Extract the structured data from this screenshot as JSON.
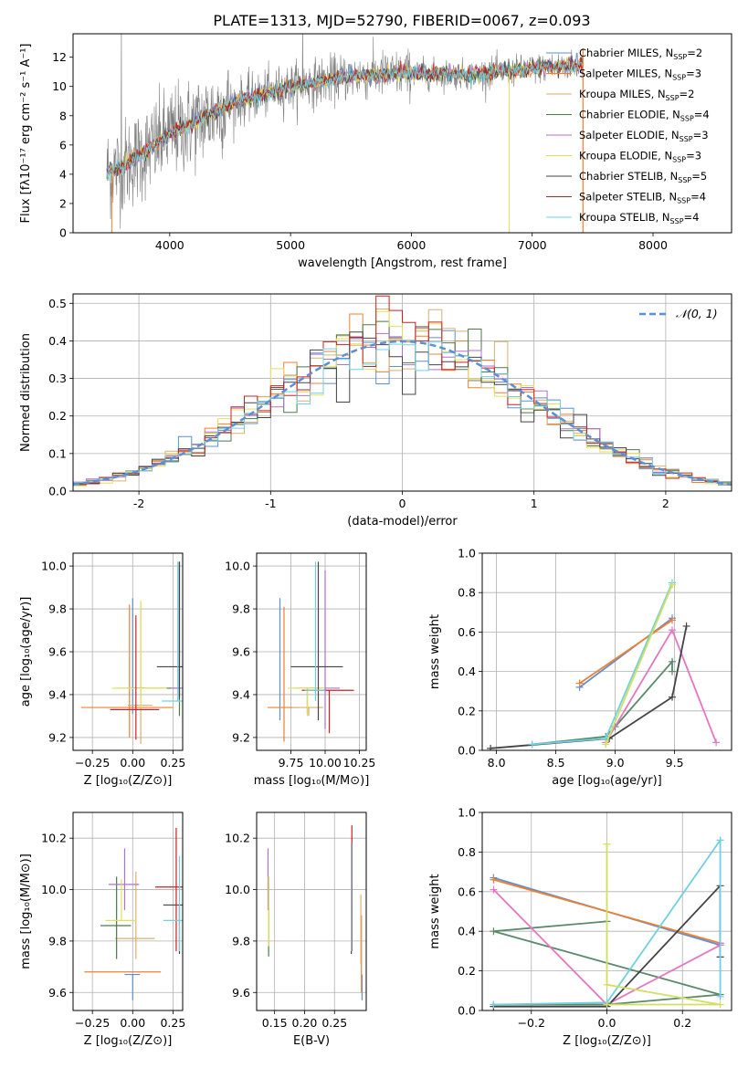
{
  "figure_title": "PLATE=1313, MJD=52790, FIBERID=0067, z=0.093",
  "colors": {
    "Chabrier MILES": "#5b8fd6",
    "Salpeter MILES": "#f07f30",
    "Kroupa MILES": "#d8b070",
    "Chabrier ELODIE": "#4a7a4a",
    "Salpeter ELODIE": "#b070d0",
    "Kroupa ELODIE": "#e6e055",
    "Chabrier STELIB": "#444444",
    "Salpeter STELIB": "#cc2020",
    "Kroupa STELIB": "#70d0e0",
    "data": "#808080",
    "weight_lines": [
      "#5b8fd6",
      "#f07f30",
      "#5a8a6a",
      "#e377c2",
      "#444444",
      "#70d0e0",
      "#d0e060"
    ]
  },
  "chart_data": [
    {
      "id": "spectrum",
      "type": "line",
      "title": "PLATE=1313, MJD=52790, FIBERID=0067, z=0.093",
      "xlabel": "wavelength [Angstrom, rest frame]",
      "ylabel": "Flux [fλ10⁻¹⁷ erg cm⁻² s⁻¹ A⁻¹]",
      "xlim": [
        3200,
        8650
      ],
      "ylim": [
        0,
        13.6
      ],
      "xticks": [
        4000,
        5000,
        6000,
        7000,
        8000
      ],
      "yticks": [
        0,
        2,
        4,
        6,
        8,
        10,
        12
      ],
      "legend_position": "upper-right",
      "legend": [
        {
          "name": "Chabrier MILES",
          "suffix": "=2"
        },
        {
          "name": "Salpeter MILES",
          "suffix": "=3"
        },
        {
          "name": "Kroupa MILES",
          "suffix": "=2"
        },
        {
          "name": "Chabrier ELODIE",
          "suffix": "=4"
        },
        {
          "name": "Salpeter ELODIE",
          "suffix": "=3"
        },
        {
          "name": "Kroupa ELODIE",
          "suffix": "=3"
        },
        {
          "name": "Chabrier STELIB",
          "suffix": "=5"
        },
        {
          "name": "Salpeter STELIB",
          "suffix": "=4"
        },
        {
          "name": "Kroupa STELIB",
          "suffix": "=4"
        }
      ],
      "continuum": {
        "x": [
          3500,
          3600,
          3800,
          4000,
          4200,
          4500,
          5000,
          5500,
          6000,
          6500,
          7000,
          7400
        ],
        "y": [
          4.2,
          4.5,
          5.5,
          6.8,
          7.5,
          8.8,
          10.0,
          10.7,
          10.9,
          10.8,
          11.2,
          11.5
        ]
      },
      "grid": false
    },
    {
      "id": "residuals",
      "type": "line",
      "xlabel": "(data-model)/error",
      "ylabel": "Normed distribution",
      "xlim": [
        -2.5,
        2.5
      ],
      "ylim": [
        0,
        0.525
      ],
      "xticks": [
        -2,
        -1,
        0,
        1,
        2
      ],
      "yticks": [
        0.0,
        0.1,
        0.2,
        0.3,
        0.4,
        0.5
      ],
      "legend_position": "upper-right",
      "normal_label": "𝒩(0, 1)",
      "bin_width": 0.1,
      "bin_start": -2.5,
      "grid": true
    },
    {
      "id": "age_vs_Z",
      "type": "scatter",
      "xlabel": "Z [log₁₀(Z/Z⊙)]",
      "ylabel": "age  [log₁₀(age/yr)]",
      "xlim": [
        -0.37,
        0.31
      ],
      "ylim": [
        9.14,
        10.06
      ],
      "xticks": [
        -0.25,
        0.0,
        0.25
      ],
      "xticklabels": [
        "−0.25",
        "0.00",
        "0.25"
      ],
      "yticks": [
        9.2,
        9.4,
        9.6,
        9.8,
        10.0
      ],
      "grid": true,
      "points": [
        {
          "s": "Chabrier MILES",
          "x": 0.0,
          "y": 9.43,
          "xe": 0.1,
          "ye": [
            0.12,
            0.42
          ]
        },
        {
          "s": "Salpeter MILES",
          "x": -0.02,
          "y": 9.34,
          "xe": 0.3,
          "ye": [
            0.14,
            0.48
          ]
        },
        {
          "s": "Kroupa MILES",
          "x": 0.05,
          "y": 9.35,
          "xe": 0.08,
          "ye": [
            0.18,
            0.48
          ]
        },
        {
          "s": "Chabrier ELODIE",
          "x": 0.29,
          "y": 9.43,
          "xe": 0.3,
          "ye": [
            0.13,
            0.59
          ]
        },
        {
          "s": "Salpeter ELODIE",
          "x": 0.29,
          "y": 9.43,
          "xe": 0.05,
          "ye": [
            0.04,
            0.59
          ]
        },
        {
          "s": "Kroupa ELODIE",
          "x": 0.05,
          "y": 9.43,
          "xe": 0.18,
          "ye": [
            0.09,
            0.41
          ]
        },
        {
          "s": "Chabrier STELIB",
          "x": 0.29,
          "y": 9.53,
          "xe": 0.14,
          "ye": [
            0.15,
            0.49
          ]
        },
        {
          "s": "Salpeter STELIB",
          "x": 0.02,
          "y": 9.33,
          "xe": 0.16,
          "ye": [
            0.14,
            0.44
          ]
        },
        {
          "s": "Kroupa STELIB",
          "x": 0.28,
          "y": 9.37,
          "xe": 0.1,
          "ye": [
            0.0,
            0.65
          ]
        }
      ]
    },
    {
      "id": "age_vs_mass",
      "type": "scatter",
      "xlabel": "mass [log₁₀(M/M⊙)]",
      "ylabel": "",
      "xlim": [
        9.5,
        10.3
      ],
      "ylim": [
        9.14,
        10.06
      ],
      "xticks": [
        9.75,
        10.0,
        10.25
      ],
      "xticklabels": [
        "9.75",
        "10.00",
        "10.25"
      ],
      "yticks": [
        9.2,
        9.4,
        9.6,
        9.8,
        10.0
      ],
      "grid": true,
      "points": [
        {
          "s": "Chabrier MILES",
          "x": 9.67,
          "y": 9.42,
          "xe": 0.0,
          "ye": [
            0.14,
            0.43
          ]
        },
        {
          "s": "Salpeter MILES",
          "x": 9.7,
          "y": 9.34,
          "xe": 0.12,
          "ye": [
            0.16,
            0.47
          ]
        },
        {
          "s": "Kroupa MILES",
          "x": 9.88,
          "y": 9.34,
          "xe": 0.12,
          "ye": [
            0.04,
            0.0
          ]
        },
        {
          "s": "Chabrier ELODIE",
          "x": 9.87,
          "y": 9.43,
          "xe": 0.1,
          "ye": [
            0.12,
            0.0
          ]
        },
        {
          "s": "Salpeter ELODIE",
          "x": 10.0,
          "y": 9.43,
          "xe": 0.12,
          "ye": [
            0.19,
            0.55
          ]
        },
        {
          "s": "Kroupa ELODIE",
          "x": 9.87,
          "y": 9.43,
          "xe": 0.14,
          "ye": [
            0.13,
            0.0
          ]
        },
        {
          "s": "Chabrier STELIB",
          "x": 9.95,
          "y": 9.53,
          "xe": 0.2,
          "ye": [
            0.25,
            0.49
          ]
        },
        {
          "s": "Salpeter STELIB",
          "x": 10.03,
          "y": 9.42,
          "xe": 0.2,
          "ye": [
            0.2,
            0.0
          ]
        },
        {
          "s": "Kroupa STELIB",
          "x": 9.93,
          "y": 9.42,
          "xe": 0.08,
          "ye": [
            0.05,
            0.6
          ]
        }
      ]
    },
    {
      "id": "weight_vs_age",
      "type": "line",
      "xlabel": "age  [log₁₀(age/yr)]",
      "ylabel": "mass weight",
      "xlim": [
        7.88,
        9.98
      ],
      "ylim": [
        0,
        1.0
      ],
      "xticks": [
        8.0,
        8.5,
        9.0,
        9.5
      ],
      "xticklabels": [
        "8.0",
        "8.5",
        "9.0",
        "9.5"
      ],
      "yticks": [
        0.0,
        0.2,
        0.4,
        0.6,
        0.8,
        1.0
      ],
      "grid": true,
      "series": [
        {
          "c": 0,
          "x": [
            8.7,
            9.48
          ],
          "y": [
            0.32,
            0.67
          ]
        },
        {
          "c": 1,
          "x": [
            8.7,
            9.48
          ],
          "y": [
            0.34,
            0.66
          ]
        },
        {
          "c": 2,
          "x": [
            8.3,
            8.92,
            9.0,
            9.48,
            9.48
          ],
          "y": [
            0.03,
            0.07,
            0.12,
            0.45,
            0.4
          ]
        },
        {
          "c": 3,
          "x": [
            8.92,
            9.48,
            9.85
          ],
          "y": [
            0.04,
            0.61,
            0.04
          ]
        },
        {
          "c": 4,
          "x": [
            7.95,
            8.95,
            9.48,
            9.6
          ],
          "y": [
            0.01,
            0.06,
            0.27,
            0.63
          ]
        },
        {
          "c": 5,
          "x": [
            8.3,
            8.92,
            9.48
          ],
          "y": [
            0.03,
            0.06,
            0.85
          ]
        },
        {
          "c": 6,
          "x": [
            8.92,
            9.48
          ],
          "y": [
            0.03,
            0.84
          ]
        }
      ]
    },
    {
      "id": "mass_vs_Z",
      "type": "scatter",
      "xlabel": "Z [log₁₀(Z/Z⊙)]",
      "ylabel": "mass [log₁₀(M/M⊙)]",
      "xlim": [
        -0.37,
        0.31
      ],
      "ylim": [
        9.53,
        10.3
      ],
      "xticks": [
        -0.25,
        0.0,
        0.25
      ],
      "xticklabels": [
        "−0.25",
        "0.00",
        "0.25"
      ],
      "yticks": [
        9.6,
        9.8,
        10.0,
        10.2
      ],
      "grid": true,
      "points": [
        {
          "s": "Chabrier MILES",
          "x": 0.0,
          "y": 9.67,
          "xe": 0.05,
          "ye": [
            0.1,
            0.0
          ]
        },
        {
          "s": "Salpeter MILES",
          "x": -0.05,
          "y": 9.68,
          "xe": 0.25,
          "ye": [
            0.0,
            0.0
          ]
        },
        {
          "s": "Kroupa MILES",
          "x": 0.02,
          "y": 9.81,
          "xe": 0.13,
          "ye": [
            0.08,
            0.26
          ]
        },
        {
          "s": "Chabrier ELODIE",
          "x": -0.1,
          "y": 9.86,
          "xe": 0.1,
          "ye": [
            0.13,
            0.19
          ]
        },
        {
          "s": "Salpeter ELODIE",
          "x": -0.05,
          "y": 10.02,
          "xe": 0.1,
          "ye": [
            0.1,
            0.14
          ]
        },
        {
          "s": "Kroupa ELODIE",
          "x": -0.07,
          "y": 9.88,
          "xe": 0.1,
          "ye": [
            0.0,
            0.16
          ]
        },
        {
          "s": "Chabrier STELIB",
          "x": 0.29,
          "y": 9.94,
          "xe": 0.1,
          "ye": [
            0.19,
            0.0
          ]
        },
        {
          "s": "Salpeter STELIB",
          "x": 0.27,
          "y": 10.01,
          "xe": 0.13,
          "ye": [
            0.25,
            0.23
          ]
        },
        {
          "s": "Kroupa STELIB",
          "x": 0.29,
          "y": 9.88,
          "xe": 0.1,
          "ye": [
            0.12,
            0.25
          ]
        }
      ]
    },
    {
      "id": "mass_vs_ebv",
      "type": "scatter",
      "xlabel": "E(B-V)",
      "ylabel": "",
      "xlim": [
        0.12,
        0.303
      ],
      "ylim": [
        9.53,
        10.3
      ],
      "xticks": [
        0.15,
        0.2,
        0.25
      ],
      "xticklabels": [
        "0.15",
        "0.20",
        "0.25"
      ],
      "yticks": [
        9.6,
        9.8,
        10.0,
        10.2
      ],
      "grid": true,
      "points": [
        {
          "s": "Chabrier MILES",
          "x": 0.296,
          "y": 9.67,
          "xe": 0,
          "ye": [
            0.1,
            0.0
          ]
        },
        {
          "s": "Salpeter MILES",
          "x": 0.295,
          "y": 9.7,
          "xe": 0,
          "ye": [
            0.1,
            0.2
          ]
        },
        {
          "s": "Kroupa MILES",
          "x": 0.294,
          "y": 9.81,
          "xe": 0,
          "ye": [
            0.1,
            0.17
          ]
        },
        {
          "s": "Chabrier ELODIE",
          "x": 0.14,
          "y": 9.85,
          "xe": 0,
          "ye": [
            0.11,
            0.2
          ]
        },
        {
          "s": "Salpeter ELODIE",
          "x": 0.139,
          "y": 10.02,
          "xe": 0,
          "ye": [
            0.1,
            0.14
          ]
        },
        {
          "s": "Kroupa ELODIE",
          "x": 0.14,
          "y": 9.88,
          "xe": 0,
          "ye": [
            0.1,
            0.17
          ]
        },
        {
          "s": "Chabrier STELIB",
          "x": 0.278,
          "y": 9.94,
          "xe": 0,
          "ye": [
            0.19,
            0.11
          ]
        },
        {
          "s": "Salpeter STELIB",
          "x": 0.279,
          "y": 10.02,
          "xe": 0,
          "ye": [
            0.26,
            0.23
          ]
        },
        {
          "s": "Kroupa STELIB",
          "x": 0.278,
          "y": 9.88,
          "xe": 0,
          "ye": [
            0.12,
            0.3
          ]
        }
      ]
    },
    {
      "id": "weight_vs_Z",
      "type": "line",
      "xlabel": "Z [log₁₀(Z/Z⊙)]",
      "ylabel": "mass weight",
      "xlim": [
        -0.33,
        0.33
      ],
      "ylim": [
        0,
        1.0
      ],
      "xticks": [
        -0.2,
        0.0,
        0.2
      ],
      "xticklabels": [
        "−0.2",
        "0.0",
        "0.2"
      ],
      "yticks": [
        0.0,
        0.2,
        0.4,
        0.6,
        0.8,
        1.0
      ],
      "grid": true,
      "series": [
        {
          "c": 0,
          "x": [
            -0.3,
            0.3
          ],
          "y": [
            0.67,
            0.33
          ]
        },
        {
          "c": 1,
          "x": [
            -0.3,
            0.3
          ],
          "y": [
            0.66,
            0.34
          ]
        },
        {
          "c": 2,
          "x": [
            -0.3,
            0.0,
            0.3,
            -0.3,
            0.0
          ],
          "y": [
            0.03,
            0.03,
            0.08,
            0.4,
            0.45
          ]
        },
        {
          "c": 3,
          "x": [
            -0.3,
            0.0,
            0.3,
            0.3
          ],
          "y": [
            0.61,
            0.03,
            0.33,
            0.34
          ]
        },
        {
          "c": 4,
          "x": [
            -0.3,
            0.0,
            0.3,
            0.3
          ],
          "y": [
            0.02,
            0.02,
            0.63,
            0.27
          ]
        },
        {
          "c": 5,
          "x": [
            -0.3,
            0.0,
            0.3,
            0.3
          ],
          "y": [
            0.03,
            0.04,
            0.86,
            0.07
          ]
        },
        {
          "c": 6,
          "x": [
            0.0,
            0.0,
            0.3,
            0.0
          ],
          "y": [
            0.84,
            0.13,
            0.03,
            0.03
          ]
        }
      ]
    }
  ]
}
